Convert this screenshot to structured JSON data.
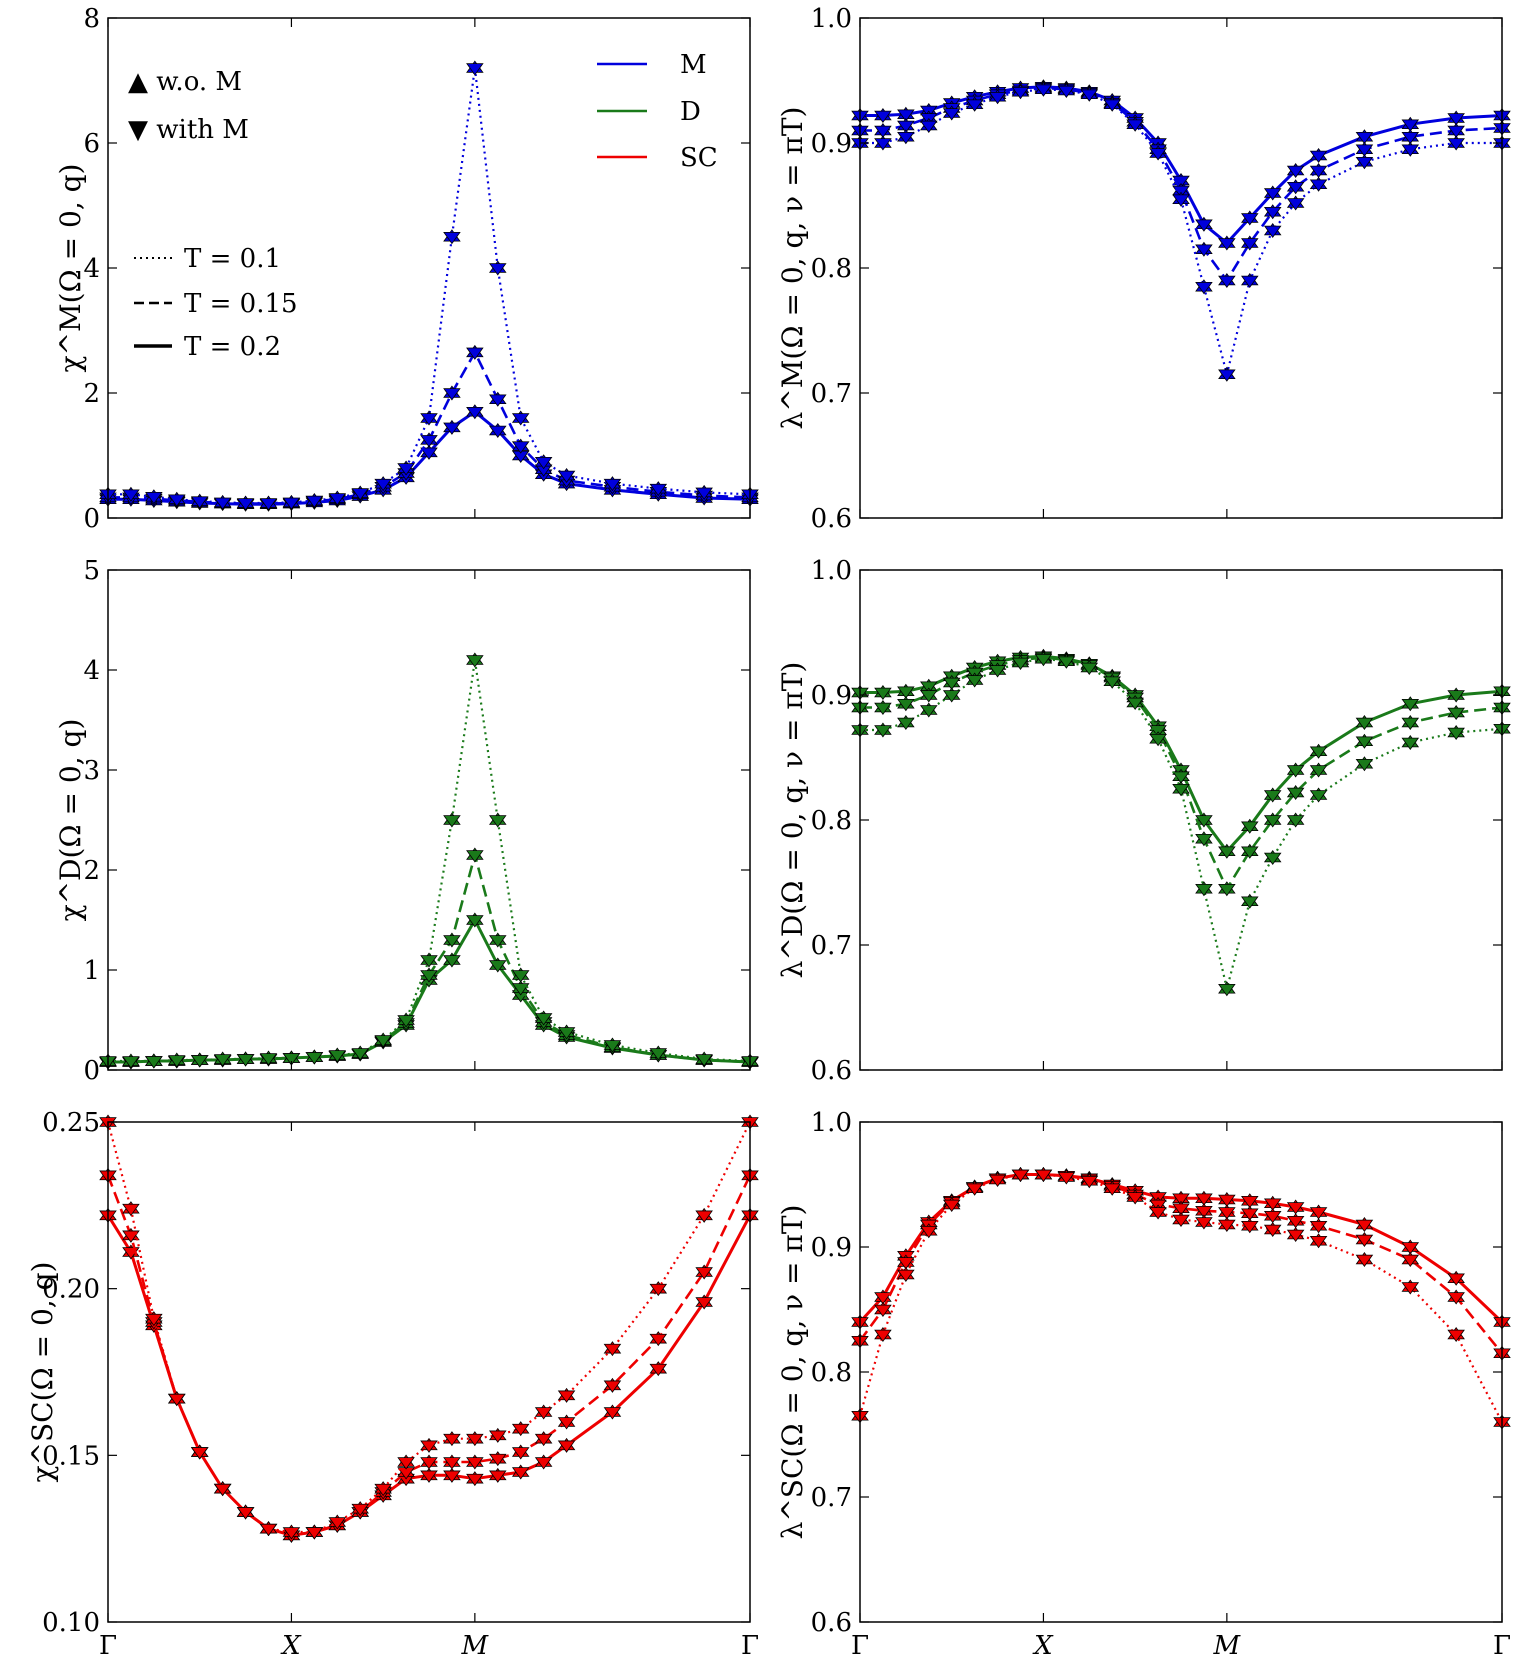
{
  "figure": {
    "x_tick_labels": [
      "Γ",
      "X",
      "M",
      "Γ"
    ],
    "legend_markers": {
      "up": "▲ w.o. M",
      "down": "▼ with M"
    },
    "legend_linestyles": {
      "dotted": "T = 0.1",
      "dashed": "T = 0.15",
      "solid": "T = 0.2"
    },
    "legend_channels": [
      {
        "label": "M",
        "color": "#0000dd"
      },
      {
        "label": "D",
        "color": "#1a7a1a"
      },
      {
        "label": "SC",
        "color": "#ee0000"
      }
    ]
  },
  "chart_data": [
    {
      "type": "line",
      "channel": "M",
      "color": "#0000dd",
      "ylabel": "χ^M(Ω = 0, q)",
      "ylim": [
        0,
        8
      ],
      "yticks": [
        "0",
        "2",
        "4",
        "6",
        "8"
      ],
      "ytick_values": [
        0,
        2,
        4,
        6,
        8
      ],
      "xlim": [
        0,
        14
      ],
      "xticks": [
        0,
        4,
        8,
        14
      ],
      "x": [
        0,
        0.5,
        1,
        1.5,
        2,
        2.5,
        3,
        3.5,
        4,
        4.5,
        5,
        5.5,
        6,
        6.5,
        7,
        7.5,
        8,
        8.5,
        9,
        9.5,
        10,
        11,
        12,
        13,
        14
      ],
      "series": [
        {
          "name": "T = 0.2",
          "style": "solid",
          "markers": "both",
          "values": [
            0.3,
            0.3,
            0.28,
            0.26,
            0.24,
            0.23,
            0.22,
            0.22,
            0.23,
            0.25,
            0.28,
            0.35,
            0.45,
            0.65,
            1.05,
            1.45,
            1.7,
            1.4,
            1.0,
            0.7,
            0.55,
            0.45,
            0.38,
            0.32,
            0.3
          ]
        },
        {
          "name": "T = 0.15",
          "style": "dashed",
          "markers": "both",
          "values": [
            0.33,
            0.33,
            0.31,
            0.28,
            0.26,
            0.24,
            0.23,
            0.23,
            0.24,
            0.27,
            0.3,
            0.38,
            0.5,
            0.72,
            1.25,
            2.0,
            2.65,
            1.9,
            1.15,
            0.78,
            0.6,
            0.5,
            0.42,
            0.36,
            0.33
          ]
        },
        {
          "name": "T = 0.1",
          "style": "dotted",
          "markers": "both",
          "values": [
            0.38,
            0.38,
            0.34,
            0.3,
            0.27,
            0.25,
            0.24,
            0.24,
            0.25,
            0.28,
            0.32,
            0.4,
            0.55,
            0.8,
            1.6,
            4.5,
            7.2,
            4.0,
            1.6,
            0.9,
            0.68,
            0.55,
            0.47,
            0.41,
            0.38
          ]
        }
      ]
    },
    {
      "type": "line",
      "channel": "M",
      "color": "#0000dd",
      "ylabel": "λ^M(Ω = 0, q, ν = πT)",
      "ylim": [
        0.6,
        1.0
      ],
      "yticks": [
        "0.6",
        "0.7",
        "0.8",
        "0.9",
        "1.0"
      ],
      "ytick_values": [
        0.6,
        0.7,
        0.8,
        0.9,
        1.0
      ],
      "xlim": [
        0,
        14
      ],
      "xticks": [
        0,
        4,
        8,
        14
      ],
      "x": [
        0,
        0.5,
        1,
        1.5,
        2,
        2.5,
        3,
        3.5,
        4,
        4.5,
        5,
        5.5,
        6,
        6.5,
        7,
        7.5,
        8,
        8.5,
        9,
        9.5,
        10,
        11,
        12,
        13,
        14
      ],
      "series": [
        {
          "name": "T = 0.2",
          "style": "solid",
          "markers": "both",
          "values": [
            0.922,
            0.922,
            0.923,
            0.926,
            0.932,
            0.937,
            0.941,
            0.944,
            0.945,
            0.944,
            0.941,
            0.934,
            0.92,
            0.9,
            0.87,
            0.835,
            0.82,
            0.84,
            0.86,
            0.878,
            0.89,
            0.905,
            0.915,
            0.92,
            0.922
          ]
        },
        {
          "name": "T = 0.15",
          "style": "dashed",
          "markers": "both",
          "values": [
            0.91,
            0.91,
            0.914,
            0.92,
            0.928,
            0.934,
            0.939,
            0.942,
            0.944,
            0.943,
            0.94,
            0.932,
            0.917,
            0.895,
            0.862,
            0.815,
            0.79,
            0.82,
            0.845,
            0.865,
            0.878,
            0.895,
            0.905,
            0.91,
            0.912
          ]
        },
        {
          "name": "T = 0.1",
          "style": "dotted",
          "markers": "both",
          "values": [
            0.9,
            0.9,
            0.905,
            0.914,
            0.924,
            0.931,
            0.937,
            0.941,
            0.943,
            0.942,
            0.939,
            0.931,
            0.915,
            0.892,
            0.855,
            0.785,
            0.715,
            0.79,
            0.83,
            0.852,
            0.867,
            0.885,
            0.895,
            0.9,
            0.9
          ]
        }
      ]
    },
    {
      "type": "line",
      "channel": "D",
      "color": "#1a7a1a",
      "ylabel": "χ^D(Ω = 0, q)",
      "ylim": [
        0,
        5
      ],
      "yticks": [
        "0",
        "1",
        "2",
        "3",
        "4",
        "5"
      ],
      "ytick_values": [
        0,
        1,
        2,
        3,
        4,
        5
      ],
      "xlim": [
        0,
        14
      ],
      "xticks": [
        0,
        4,
        8,
        14
      ],
      "x": [
        0,
        0.5,
        1,
        1.5,
        2,
        2.5,
        3,
        3.5,
        4,
        4.5,
        5,
        5.5,
        6,
        6.5,
        7,
        7.5,
        8,
        8.5,
        9,
        9.5,
        10,
        11,
        12,
        13,
        14
      ],
      "series": [
        {
          "name": "T = 0.2",
          "style": "solid",
          "markers": "both",
          "values": [
            0.08,
            0.08,
            0.09,
            0.09,
            0.1,
            0.1,
            0.11,
            0.11,
            0.12,
            0.13,
            0.14,
            0.16,
            0.28,
            0.45,
            0.9,
            1.1,
            1.5,
            1.05,
            0.75,
            0.45,
            0.33,
            0.22,
            0.15,
            0.1,
            0.08
          ]
        },
        {
          "name": "T = 0.15",
          "style": "dashed",
          "markers": "both",
          "values": [
            0.08,
            0.08,
            0.09,
            0.09,
            0.1,
            0.1,
            0.11,
            0.11,
            0.12,
            0.13,
            0.14,
            0.16,
            0.29,
            0.47,
            0.95,
            1.3,
            2.15,
            1.3,
            0.82,
            0.48,
            0.35,
            0.23,
            0.15,
            0.1,
            0.08
          ]
        },
        {
          "name": "T = 0.1",
          "style": "dotted",
          "markers": "both",
          "values": [
            0.09,
            0.09,
            0.09,
            0.1,
            0.1,
            0.11,
            0.11,
            0.12,
            0.12,
            0.13,
            0.15,
            0.17,
            0.3,
            0.5,
            1.1,
            2.5,
            4.1,
            2.5,
            0.95,
            0.52,
            0.38,
            0.25,
            0.17,
            0.11,
            0.09
          ]
        }
      ]
    },
    {
      "type": "line",
      "channel": "D",
      "color": "#1a7a1a",
      "ylabel": "λ^D(Ω = 0, q, ν = πT)",
      "ylim": [
        0.6,
        1.0
      ],
      "yticks": [
        "0.6",
        "0.7",
        "0.8",
        "0.9",
        "1.0"
      ],
      "ytick_values": [
        0.6,
        0.7,
        0.8,
        0.9,
        1.0
      ],
      "xlim": [
        0,
        14
      ],
      "xticks": [
        0,
        4,
        8,
        14
      ],
      "x": [
        0,
        0.5,
        1,
        1.5,
        2,
        2.5,
        3,
        3.5,
        4,
        4.5,
        5,
        5.5,
        6,
        6.5,
        7,
        7.5,
        8,
        8.5,
        9,
        9.5,
        10,
        11,
        12,
        13,
        14
      ],
      "series": [
        {
          "name": "T = 0.2",
          "style": "solid",
          "markers": "both",
          "values": [
            0.902,
            0.902,
            0.903,
            0.907,
            0.915,
            0.922,
            0.927,
            0.93,
            0.931,
            0.929,
            0.925,
            0.915,
            0.9,
            0.875,
            0.84,
            0.8,
            0.775,
            0.795,
            0.82,
            0.84,
            0.855,
            0.878,
            0.893,
            0.9,
            0.903
          ]
        },
        {
          "name": "T = 0.15",
          "style": "dashed",
          "markers": "both",
          "values": [
            0.89,
            0.89,
            0.893,
            0.9,
            0.91,
            0.918,
            0.924,
            0.928,
            0.93,
            0.928,
            0.924,
            0.914,
            0.898,
            0.872,
            0.835,
            0.785,
            0.745,
            0.775,
            0.8,
            0.822,
            0.84,
            0.863,
            0.878,
            0.886,
            0.89
          ]
        },
        {
          "name": "T = 0.1",
          "style": "dotted",
          "markers": "both",
          "values": [
            0.872,
            0.872,
            0.878,
            0.888,
            0.9,
            0.912,
            0.92,
            0.926,
            0.929,
            0.927,
            0.922,
            0.911,
            0.894,
            0.865,
            0.825,
            0.745,
            0.665,
            0.735,
            0.77,
            0.8,
            0.82,
            0.845,
            0.862,
            0.87,
            0.873
          ]
        }
      ]
    },
    {
      "type": "line",
      "channel": "SC",
      "color": "#ee0000",
      "ylabel": "χ^SC(Ω = 0, q)",
      "ylim": [
        0.1,
        0.25
      ],
      "yticks": [
        "0.10",
        "0.15",
        "0.20",
        "0.25"
      ],
      "ytick_values": [
        0.1,
        0.15,
        0.2,
        0.25
      ],
      "xlim": [
        0,
        14
      ],
      "xticks": [
        0,
        4,
        8,
        14
      ],
      "x": [
        0,
        0.5,
        1,
        1.5,
        2,
        2.5,
        3,
        3.5,
        4,
        4.5,
        5,
        5.5,
        6,
        6.5,
        7,
        7.5,
        8,
        8.5,
        9,
        9.5,
        10,
        11,
        12,
        13,
        14
      ],
      "series": [
        {
          "name": "T = 0.2",
          "style": "solid",
          "markers": "both",
          "values": [
            0.222,
            0.211,
            0.189,
            0.167,
            0.151,
            0.14,
            0.133,
            0.128,
            0.126,
            0.127,
            0.129,
            0.133,
            0.138,
            0.143,
            0.144,
            0.144,
            0.143,
            0.144,
            0.145,
            0.148,
            0.153,
            0.163,
            0.176,
            0.196,
            0.222
          ]
        },
        {
          "name": "T = 0.15",
          "style": "dashed",
          "markers": "both",
          "values": [
            0.234,
            0.216,
            0.19,
            0.167,
            0.151,
            0.14,
            0.133,
            0.128,
            0.126,
            0.127,
            0.129,
            0.133,
            0.139,
            0.145,
            0.148,
            0.148,
            0.148,
            0.149,
            0.151,
            0.155,
            0.16,
            0.171,
            0.185,
            0.205,
            0.234
          ]
        },
        {
          "name": "T = 0.1",
          "style": "dotted",
          "markers": "both",
          "values": [
            0.25,
            0.224,
            0.191,
            0.167,
            0.151,
            0.14,
            0.133,
            0.128,
            0.127,
            0.127,
            0.13,
            0.134,
            0.14,
            0.148,
            0.153,
            0.155,
            0.155,
            0.156,
            0.158,
            0.163,
            0.168,
            0.182,
            0.2,
            0.222,
            0.25
          ]
        }
      ]
    },
    {
      "type": "line",
      "channel": "SC",
      "color": "#ee0000",
      "ylabel": "λ^SC(Ω = 0, q, ν = πT)",
      "ylim": [
        0.6,
        1.0
      ],
      "yticks": [
        "0.6",
        "0.7",
        "0.8",
        "0.9",
        "1.0"
      ],
      "ytick_values": [
        0.6,
        0.7,
        0.8,
        0.9,
        1.0
      ],
      "xlim": [
        0,
        14
      ],
      "xticks": [
        0,
        4,
        8,
        14
      ],
      "x": [
        0,
        0.5,
        1,
        1.5,
        2,
        2.5,
        3,
        3.5,
        4,
        4.5,
        5,
        5.5,
        6,
        6.5,
        7,
        7.5,
        8,
        8.5,
        9,
        9.5,
        10,
        11,
        12,
        13,
        14
      ],
      "series": [
        {
          "name": "T = 0.2",
          "style": "solid",
          "markers": "both",
          "values": [
            0.84,
            0.86,
            0.893,
            0.92,
            0.937,
            0.948,
            0.955,
            0.958,
            0.958,
            0.957,
            0.955,
            0.95,
            0.945,
            0.94,
            0.939,
            0.939,
            0.938,
            0.937,
            0.935,
            0.932,
            0.928,
            0.918,
            0.9,
            0.875,
            0.84
          ]
        },
        {
          "name": "T = 0.15",
          "style": "dashed",
          "markers": "both",
          "values": [
            0.825,
            0.85,
            0.888,
            0.918,
            0.936,
            0.948,
            0.955,
            0.958,
            0.958,
            0.957,
            0.954,
            0.949,
            0.942,
            0.934,
            0.931,
            0.929,
            0.928,
            0.927,
            0.925,
            0.921,
            0.917,
            0.906,
            0.89,
            0.86,
            0.815
          ]
        },
        {
          "name": "T = 0.1",
          "style": "dotted",
          "markers": "both",
          "values": [
            0.765,
            0.83,
            0.878,
            0.913,
            0.934,
            0.947,
            0.954,
            0.958,
            0.958,
            0.956,
            0.953,
            0.947,
            0.94,
            0.928,
            0.922,
            0.92,
            0.918,
            0.917,
            0.914,
            0.91,
            0.905,
            0.89,
            0.868,
            0.83,
            0.76
          ]
        }
      ]
    }
  ]
}
